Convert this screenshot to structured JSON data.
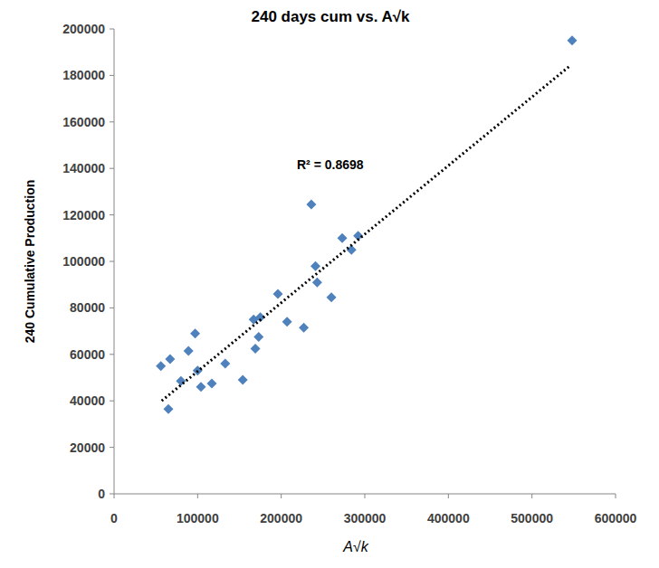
{
  "chart_data": {
    "type": "scatter",
    "title": "240 days cum vs. A√k",
    "x_label": "A√k",
    "y_label": "240 Cumulative Production",
    "annotations": [
      "R² = 0.8698"
    ],
    "series": [
      {
        "color": "#4f81bd",
        "marker": "diamond",
        "x": [
          56000,
          67000,
          65000,
          80000,
          89000,
          97000,
          100000,
          104000,
          117000,
          133000,
          154000,
          167000,
          169000,
          173000,
          175000,
          196000,
          207000,
          227000,
          236000,
          241000,
          243000,
          260000,
          273000,
          284000,
          292000,
          548000
        ],
        "values": [
          55000,
          58000,
          36500,
          48500,
          61500,
          69000,
          53000,
          46000,
          47500,
          56000,
          49000,
          75000,
          62500,
          67500,
          76000,
          86000,
          74000,
          71500,
          124500,
          98000,
          91000,
          84500,
          110000,
          105000,
          111000,
          195000
        ]
      },
      {
        "type": "line",
        "line_style": "dotted",
        "color": "#000000",
        "x": [
          57000,
          545000
        ],
        "values": [
          40000,
          184000
        ]
      }
    ],
    "xlim": [
      0,
      600000
    ],
    "xticks": [
      0,
      100000,
      200000,
      300000,
      400000,
      500000,
      600000
    ],
    "ylim": [
      0,
      200000
    ],
    "yticks": [
      0,
      20000,
      40000,
      60000,
      80000,
      100000,
      120000,
      140000,
      160000,
      180000,
      200000
    ],
    "grid": false
  }
}
